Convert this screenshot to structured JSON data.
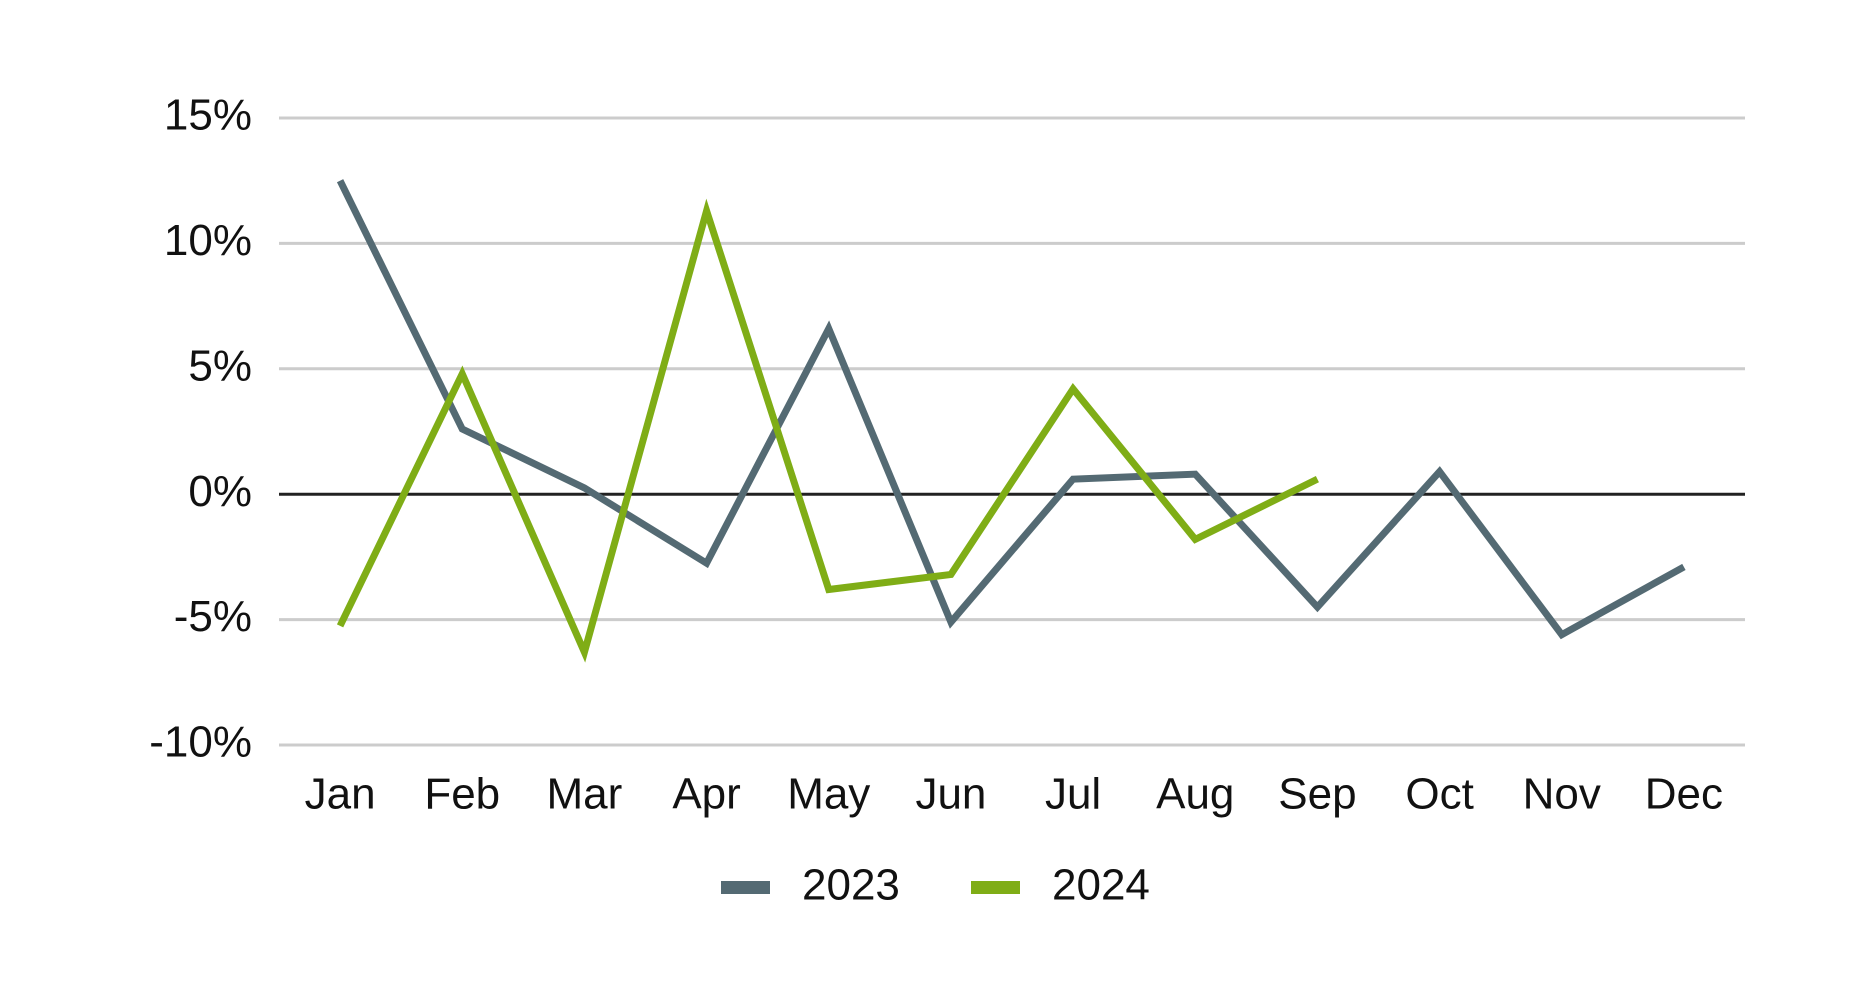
{
  "chart_data": {
    "type": "line",
    "categories": [
      "Jan",
      "Feb",
      "Mar",
      "Apr",
      "May",
      "Jun",
      "Jul",
      "Aug",
      "Sep",
      "Oct",
      "Nov",
      "Dec"
    ],
    "series": [
      {
        "name": "2023",
        "color": "#546a73",
        "values": [
          12.5,
          2.6,
          0.25,
          -2.75,
          6.6,
          -5.1,
          0.6,
          0.8,
          -4.5,
          0.9,
          -5.6,
          -2.9
        ]
      },
      {
        "name": "2024",
        "color": "#7fad16",
        "values": [
          -5.25,
          4.8,
          -6.3,
          11.3,
          -3.8,
          -3.2,
          4.2,
          -1.8,
          0.6,
          null,
          null,
          null
        ]
      }
    ],
    "ylim": [
      -10,
      15
    ],
    "yticks": [
      {
        "value": -10,
        "label": "-10%"
      },
      {
        "value": -5,
        "label": "-5%"
      },
      {
        "value": 0,
        "label": "0%"
      },
      {
        "value": 5,
        "label": "5%"
      },
      {
        "value": 10,
        "label": "10%"
      },
      {
        "value": 15,
        "label": "15%"
      }
    ],
    "grid": true,
    "legend": "bottom"
  }
}
